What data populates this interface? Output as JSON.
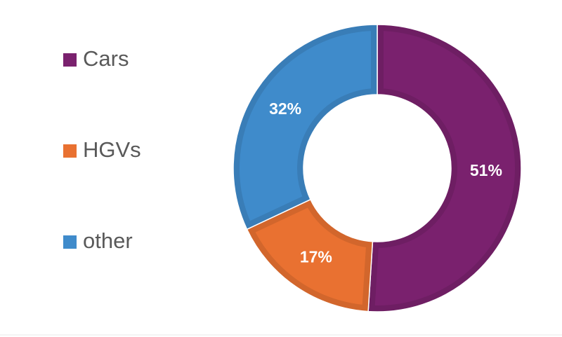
{
  "chart_data": {
    "type": "donut",
    "categories": [
      "Cars",
      "HGVs",
      "other"
    ],
    "values": [
      51,
      17,
      32
    ],
    "value_labels": [
      "51%",
      "17%",
      "32%"
    ],
    "colors": [
      "#7a216e",
      "#e97131",
      "#3f8bcb"
    ]
  }
}
